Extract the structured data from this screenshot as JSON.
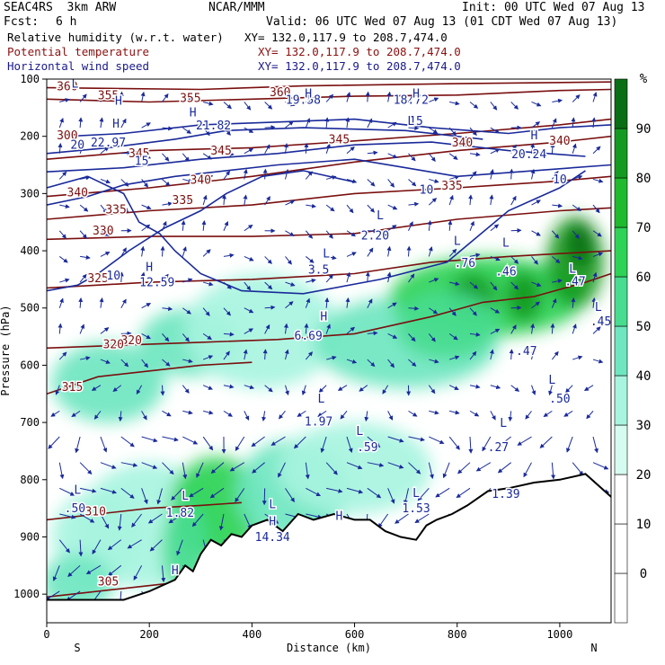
{
  "header": {
    "model": "SEAC4RS  3km ARW",
    "org": "NCAR/MMM",
    "init": "Init: 00 UTC Wed 07 Aug 13",
    "fcst_label": "Fcst:",
    "fcst_value": "6 h",
    "valid": "Valid: 06 UTC Wed 07 Aug 13 (01 CDT Wed 07 Aug 13)",
    "field1_name": "Relative humidity (w.r.t. water)",
    "field1_xy": "XY= 132.0,117.9 to 208.7,474.0",
    "field2_name": "Potential temperature",
    "field2_xy": "XY= 132.0,117.9 to 208.7,474.0",
    "field3_name": "Horizontal wind speed",
    "field3_xy": "XY= 132.0,117.9 to 208.7,474.0"
  },
  "chart_data": {
    "type": "cross-section",
    "xlabel": "Distance (km)",
    "ylabel": "Pressure (hPa)",
    "xlim": [
      0,
      1100
    ],
    "ylim": [
      1050,
      100
    ],
    "x_ticks": [
      0,
      200,
      400,
      600,
      800,
      1000
    ],
    "y_ticks": [
      100,
      200,
      300,
      400,
      500,
      600,
      700,
      800,
      900,
      1000
    ],
    "x_end_labels": {
      "left": "S",
      "right": "N"
    },
    "colorbar": {
      "unit": "%",
      "ticks": [
        0,
        10,
        20,
        30,
        40,
        50,
        60,
        70,
        80,
        90
      ],
      "colors": [
        "#ffffff",
        "#ffffff",
        "#ffffff",
        "#d6fbf0",
        "#a8f4df",
        "#6fe6c0",
        "#48dc90",
        "#2ed255",
        "#1fba2e",
        "#149a20",
        "#0a6e14"
      ]
    },
    "rh_blobs": [
      {
        "x": 120,
        "p": 630,
        "rx": 110,
        "rp": 70,
        "level": 40
      },
      {
        "x": 280,
        "p": 560,
        "rx": 100,
        "rp": 60,
        "level": 40
      },
      {
        "x": 420,
        "p": 540,
        "rx": 150,
        "rp": 100,
        "level": 30
      },
      {
        "x": 700,
        "p": 560,
        "rx": 180,
        "rp": 80,
        "level": 40
      },
      {
        "x": 860,
        "p": 480,
        "rx": 190,
        "rp": 70,
        "level": 60
      },
      {
        "x": 830,
        "p": 480,
        "rx": 45,
        "rp": 40,
        "level": 80
      },
      {
        "x": 930,
        "p": 480,
        "rx": 35,
        "rp": 45,
        "level": 80
      },
      {
        "x": 1030,
        "p": 420,
        "rx": 55,
        "rp": 80,
        "level": 80
      },
      {
        "x": 1040,
        "p": 390,
        "rx": 25,
        "rp": 40,
        "level": 90
      },
      {
        "x": 780,
        "p": 530,
        "rx": 100,
        "rp": 60,
        "level": 50
      },
      {
        "x": 200,
        "p": 880,
        "rx": 140,
        "rp": 110,
        "level": 30
      },
      {
        "x": 330,
        "p": 850,
        "rx": 90,
        "rp": 90,
        "level": 60
      },
      {
        "x": 480,
        "p": 820,
        "rx": 110,
        "rp": 90,
        "level": 40
      },
      {
        "x": 100,
        "p": 900,
        "rx": 90,
        "rp": 80,
        "level": 30
      },
      {
        "x": 60,
        "p": 980,
        "rx": 70,
        "rp": 50,
        "level": 40
      },
      {
        "x": 270,
        "p": 920,
        "rx": 45,
        "rp": 80,
        "level": 50
      },
      {
        "x": 600,
        "p": 780,
        "rx": 150,
        "rp": 80,
        "level": 30
      }
    ],
    "theta_contours": [
      {
        "value": 305,
        "points": [
          [
            0,
            1005
          ],
          [
            150,
            990
          ],
          [
            250,
            980
          ],
          [
            350,
            975
          ],
          [
            450,
            960
          ],
          [
            500,
            950
          ]
        ],
        "label_at": [
          120,
          985
        ]
      },
      {
        "value": 310,
        "points": [
          [
            0,
            870
          ],
          [
            100,
            860
          ],
          [
            200,
            850
          ],
          [
            300,
            845
          ],
          [
            380,
            840
          ]
        ],
        "label_at": [
          95,
          862
        ]
      },
      {
        "value": 315,
        "points": [
          [
            0,
            650
          ],
          [
            100,
            620
          ],
          [
            200,
            610
          ],
          [
            300,
            600
          ],
          [
            400,
            595
          ]
        ],
        "label_at": [
          50,
          645
        ]
      },
      {
        "value": 320,
        "points": [
          [
            0,
            570
          ],
          [
            150,
            565
          ],
          [
            300,
            560
          ],
          [
            450,
            555
          ],
          [
            600,
            545
          ],
          [
            750,
            515
          ],
          [
            850,
            490
          ],
          [
            950,
            480
          ],
          [
            1050,
            455
          ],
          [
            1100,
            440
          ]
        ],
        "label_at": [
          165,
          563
        ]
      },
      {
        "value": 325,
        "points": [
          [
            0,
            465
          ],
          [
            200,
            455
          ],
          [
            400,
            450
          ],
          [
            600,
            440
          ],
          [
            750,
            420
          ],
          [
            900,
            410
          ],
          [
            1000,
            405
          ],
          [
            1100,
            400
          ]
        ],
        "label_at": [
          100,
          455
        ]
      },
      {
        "value": 330,
        "points": [
          [
            0,
            380
          ],
          [
            200,
            375
          ],
          [
            400,
            375
          ],
          [
            600,
            370
          ],
          [
            800,
            345
          ],
          [
            1000,
            330
          ],
          [
            1100,
            325
          ]
        ],
        "label_at": [
          110,
          372
        ]
      },
      {
        "value": 335,
        "points": [
          [
            0,
            345
          ],
          [
            200,
            330
          ],
          [
            400,
            320
          ],
          [
            600,
            300
          ],
          [
            800,
            290
          ],
          [
            1000,
            278
          ],
          [
            1100,
            270
          ]
        ],
        "label_at": [
          135,
          335
        ]
      },
      {
        "value": 340,
        "points": [
          [
            0,
            305
          ],
          [
            200,
            290
          ],
          [
            400,
            270
          ],
          [
            600,
            245
          ],
          [
            800,
            225
          ],
          [
            1000,
            210
          ],
          [
            1100,
            200
          ]
        ],
        "label_at": [
          60,
          305
        ]
      },
      {
        "value": 345,
        "points": [
          [
            0,
            240
          ],
          [
            200,
            225
          ],
          [
            400,
            220
          ],
          [
            600,
            208
          ],
          [
            800,
            195
          ],
          [
            1000,
            180
          ],
          [
            1100,
            170
          ]
        ],
        "label_at": [
          180,
          237
        ]
      },
      {
        "value": 355,
        "points": [
          [
            0,
            135
          ],
          [
            200,
            140
          ],
          [
            400,
            135
          ],
          [
            600,
            130
          ],
          [
            800,
            128
          ],
          [
            1000,
            120
          ],
          [
            1100,
            118
          ]
        ],
        "label_at": [
          120,
          135
        ]
      },
      {
        "value": 360,
        "points": [
          [
            0,
            115
          ],
          [
            300,
            118
          ],
          [
            500,
            112
          ],
          [
            800,
            108
          ],
          [
            1100,
            105
          ]
        ],
        "label_at": [
          40,
          120
        ]
      }
    ],
    "theta_labels": [
      {
        "text": "345",
        "x": 340,
        "p": 232
      },
      {
        "text": "345",
        "x": 570,
        "p": 212
      },
      {
        "text": "340",
        "x": 300,
        "p": 283
      },
      {
        "text": "340",
        "x": 810,
        "p": 218
      },
      {
        "text": "340",
        "x": 1000,
        "p": 215
      },
      {
        "text": "335",
        "x": 265,
        "p": 318
      },
      {
        "text": "335",
        "x": 790,
        "p": 293
      },
      {
        "text": "355",
        "x": 280,
        "p": 140
      },
      {
        "text": "360",
        "x": 455,
        "p": 130
      },
      {
        "text": "300",
        "x": 40,
        "p": 205
      },
      {
        "text": "320",
        "x": 130,
        "p": 570
      }
    ],
    "wind_contours": [
      {
        "value": 10,
        "points": [
          [
            40,
            200
          ],
          [
            150,
            195
          ],
          [
            300,
            180
          ],
          [
            450,
            175
          ],
          [
            600,
            170
          ],
          [
            750,
            185
          ],
          [
            900,
            195
          ],
          [
            1000,
            185
          ],
          [
            1100,
            180
          ]
        ]
      },
      {
        "value": 20,
        "points": [
          [
            0,
            230
          ],
          [
            120,
            220
          ],
          [
            250,
            205
          ],
          [
            350,
            190
          ],
          [
            500,
            185
          ],
          [
            700,
            190
          ],
          [
            850,
            205
          ]
        ]
      },
      {
        "value": 15,
        "points": [
          [
            0,
            262
          ],
          [
            150,
            255
          ],
          [
            300,
            240
          ],
          [
            450,
            230
          ],
          [
            600,
            215
          ],
          [
            750,
            210
          ],
          [
            900,
            225
          ],
          [
            1050,
            235
          ]
        ]
      },
      {
        "value": 10,
        "points": [
          [
            0,
            290
          ],
          [
            80,
            270
          ],
          [
            150,
            300
          ],
          [
            180,
            350
          ],
          [
            220,
            370
          ],
          [
            250,
            400
          ],
          [
            300,
            440
          ],
          [
            380,
            470
          ],
          [
            500,
            475
          ],
          [
            650,
            450
          ],
          [
            780,
            420
          ],
          [
            900,
            330
          ],
          [
            1000,
            290
          ],
          [
            1050,
            260
          ]
        ]
      },
      {
        "value": 10,
        "points": [
          [
            0,
            470
          ],
          [
            60,
            460
          ],
          [
            100,
            440
          ],
          [
            160,
            400
          ],
          [
            230,
            360
          ],
          [
            300,
            330
          ],
          [
            350,
            300
          ],
          [
            420,
            270
          ],
          [
            500,
            260
          ],
          [
            600,
            280
          ]
        ]
      },
      {
        "value": 15,
        "points": [
          [
            0,
            320
          ],
          [
            80,
            305
          ],
          [
            150,
            285
          ],
          [
            250,
            270
          ],
          [
            350,
            260
          ],
          [
            450,
            250
          ],
          [
            600,
            240
          ],
          [
            700,
            255
          ],
          [
            800,
            270
          ],
          [
            950,
            260
          ],
          [
            1100,
            250
          ]
        ]
      }
    ],
    "wind_labels": [
      {
        "text": "20",
        "x": 60,
        "p": 222
      },
      {
        "text": "15",
        "x": 185,
        "p": 250
      },
      {
        "text": "10",
        "x": 740,
        "p": 300
      },
      {
        "text": "10",
        "x": 1000,
        "p": 282
      },
      {
        "text": "15",
        "x": 720,
        "p": 180
      },
      {
        "text": "10",
        "x": 130,
        "p": 450
      },
      {
        "text": "22.97",
        "x": 120,
        "p": 218
      },
      {
        "text": "21.82",
        "x": 325,
        "p": 188
      },
      {
        "text": "19.58",
        "x": 500,
        "p": 143
      },
      {
        "text": "18.72",
        "x": 710,
        "p": 143
      },
      {
        "text": "20.24",
        "x": 940,
        "p": 238
      },
      {
        "text": "12.59",
        "x": 215,
        "p": 462
      },
      {
        "text": "2.20",
        "x": 640,
        "p": 380
      },
      {
        "text": "3.5",
        "x": 530,
        "p": 440
      },
      {
        "text": "6.69",
        "x": 510,
        "p": 555
      },
      {
        "text": ".76",
        "x": 815,
        "p": 428
      },
      {
        "text": ".46",
        "x": 895,
        "p": 443
      },
      {
        "text": ".47",
        "x": 1030,
        "p": 460
      },
      {
        "text": ".45",
        "x": 1080,
        "p": 530
      },
      {
        "text": ".47",
        "x": 935,
        "p": 582
      },
      {
        "text": ".50",
        "x": 1000,
        "p": 665
      },
      {
        "text": "1.97",
        "x": 530,
        "p": 705
      },
      {
        "text": ".59",
        "x": 625,
        "p": 750
      },
      {
        "text": ".27",
        "x": 880,
        "p": 750
      },
      {
        "text": ".50",
        "x": 55,
        "p": 857
      },
      {
        "text": "1.82",
        "x": 260,
        "p": 865
      },
      {
        "text": "14.34",
        "x": 440,
        "p": 907
      },
      {
        "text": "1.53",
        "x": 720,
        "p": 857
      },
      {
        "text": "1.39",
        "x": 895,
        "p": 832
      }
    ],
    "hl_markers": [
      {
        "text": "L",
        "x": 55,
        "p": 115
      },
      {
        "text": "H",
        "x": 140,
        "p": 145
      },
      {
        "text": "H",
        "x": 285,
        "p": 165
      },
      {
        "text": "H",
        "x": 510,
        "p": 132
      },
      {
        "text": "H",
        "x": 720,
        "p": 132
      },
      {
        "text": "H",
        "x": 135,
        "p": 185
      },
      {
        "text": "L",
        "x": 710,
        "p": 180
      },
      {
        "text": "H",
        "x": 950,
        "p": 205
      },
      {
        "text": "H",
        "x": 200,
        "p": 435
      },
      {
        "text": "L",
        "x": 650,
        "p": 345
      },
      {
        "text": "L",
        "x": 545,
        "p": 412
      },
      {
        "text": "H",
        "x": 540,
        "p": 522
      },
      {
        "text": "L",
        "x": 800,
        "p": 390
      },
      {
        "text": "L",
        "x": 895,
        "p": 393
      },
      {
        "text": "L",
        "x": 1025,
        "p": 438
      },
      {
        "text": "L",
        "x": 1075,
        "p": 505
      },
      {
        "text": "L",
        "x": 985,
        "p": 632
      },
      {
        "text": "L",
        "x": 535,
        "p": 665
      },
      {
        "text": "L",
        "x": 610,
        "p": 722
      },
      {
        "text": "L",
        "x": 890,
        "p": 708
      },
      {
        "text": "L",
        "x": 60,
        "p": 825
      },
      {
        "text": "L",
        "x": 270,
        "p": 835
      },
      {
        "text": "H",
        "x": 440,
        "p": 880
      },
      {
        "text": "L",
        "x": 720,
        "p": 830
      },
      {
        "text": "H",
        "x": 250,
        "p": 965
      },
      {
        "text": "H",
        "x": 570,
        "p": 870
      },
      {
        "text": "L",
        "x": 440,
        "p": 850
      }
    ],
    "terrain": [
      [
        0,
        1010
      ],
      [
        150,
        1010
      ],
      [
        200,
        995
      ],
      [
        250,
        975
      ],
      [
        270,
        950
      ],
      [
        285,
        960
      ],
      [
        300,
        930
      ],
      [
        320,
        905
      ],
      [
        340,
        915
      ],
      [
        360,
        895
      ],
      [
        380,
        900
      ],
      [
        400,
        880
      ],
      [
        430,
        870
      ],
      [
        460,
        890
      ],
      [
        490,
        860
      ],
      [
        520,
        870
      ],
      [
        560,
        860
      ],
      [
        600,
        870
      ],
      [
        630,
        870
      ],
      [
        660,
        890
      ],
      [
        690,
        900
      ],
      [
        720,
        905
      ],
      [
        740,
        880
      ],
      [
        760,
        870
      ],
      [
        790,
        860
      ],
      [
        820,
        845
      ],
      [
        860,
        820
      ],
      [
        900,
        815
      ],
      [
        950,
        805
      ],
      [
        1000,
        800
      ],
      [
        1050,
        790
      ],
      [
        1100,
        830
      ]
    ],
    "wind_arrows_grid": {
      "x_start": 25,
      "x_step": 40,
      "p_start": 140,
      "p_step": 45
    }
  }
}
